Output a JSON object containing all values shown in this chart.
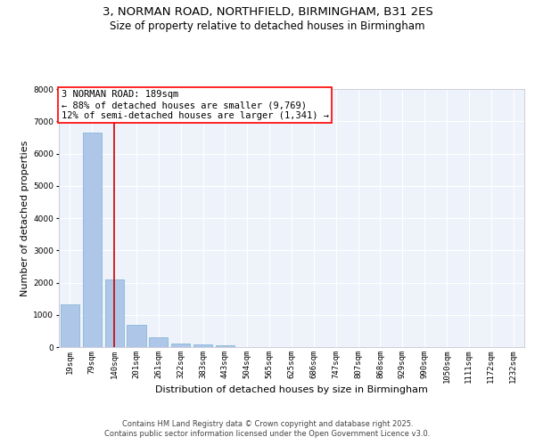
{
  "title_line1": "3, NORMAN ROAD, NORTHFIELD, BIRMINGHAM, B31 2ES",
  "title_line2": "Size of property relative to detached houses in Birmingham",
  "xlabel": "Distribution of detached houses by size in Birmingham",
  "ylabel": "Number of detached properties",
  "categories": [
    "19sqm",
    "79sqm",
    "140sqm",
    "201sqm",
    "261sqm",
    "322sqm",
    "383sqm",
    "443sqm",
    "504sqm",
    "565sqm",
    "625sqm",
    "686sqm",
    "747sqm",
    "807sqm",
    "868sqm",
    "929sqm",
    "990sqm",
    "1050sqm",
    "1111sqm",
    "1172sqm",
    "1232sqm"
  ],
  "values": [
    1320,
    6650,
    2100,
    680,
    300,
    120,
    70,
    50,
    0,
    0,
    0,
    0,
    0,
    0,
    0,
    0,
    0,
    0,
    0,
    0,
    0
  ],
  "bar_color": "#aec6e8",
  "bar_edge_color": "#7bafd4",
  "vline_x": 2.0,
  "vline_color": "#cc0000",
  "ylim": [
    0,
    8000
  ],
  "yticks": [
    0,
    1000,
    2000,
    3000,
    4000,
    5000,
    6000,
    7000,
    8000
  ],
  "annotation_text": "3 NORMAN ROAD: 189sqm\n← 88% of detached houses are smaller (9,769)\n12% of semi-detached houses are larger (1,341) →",
  "bg_color": "#eef2fa",
  "grid_color": "#ffffff",
  "footer_text": "Contains HM Land Registry data © Crown copyright and database right 2025.\nContains public sector information licensed under the Open Government Licence v3.0.",
  "title_fontsize": 9.5,
  "subtitle_fontsize": 8.5,
  "axis_label_fontsize": 8,
  "tick_fontsize": 6.5,
  "annotation_fontsize": 7.5,
  "footer_fontsize": 6.0,
  "ylabel_fontsize": 8
}
